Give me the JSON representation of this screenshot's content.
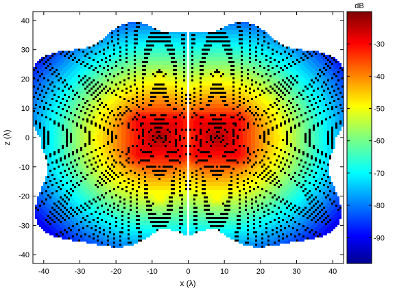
{
  "chart_data": {
    "type": "heatmap",
    "subtype": "filled-contour",
    "xlabel": "x (λ)",
    "ylabel": "z (λ)",
    "xlim": [
      -43,
      43
    ],
    "ylim": [
      -43,
      43
    ],
    "xticks": [
      -40,
      -30,
      -20,
      -10,
      0,
      10,
      20,
      30,
      40
    ],
    "yticks": [
      -40,
      -30,
      -20,
      -10,
      0,
      10,
      20,
      30,
      40
    ],
    "colorbar": {
      "unit_label": "dB",
      "range": [
        -98,
        -20
      ],
      "ticks": [
        -30,
        -40,
        -50,
        -60,
        -70,
        -80,
        -90
      ],
      "colormap": "jet"
    },
    "lobes": [
      {
        "center_x": -8,
        "center_z": 0,
        "peak_db": -21
      },
      {
        "center_x": 8,
        "center_z": 0,
        "peak_db": -21
      }
    ],
    "secondary_peaks": [
      {
        "x": -24,
        "z": 0,
        "peak_db": -46
      },
      {
        "x": 24,
        "z": 0,
        "peak_db": -46
      },
      {
        "x": -8,
        "z": 20,
        "peak_db": -48
      },
      {
        "x": 8,
        "z": 20,
        "peak_db": -48
      },
      {
        "x": -8,
        "z": -20,
        "peak_db": -48
      },
      {
        "x": 8,
        "z": -20,
        "peak_db": -48
      }
    ],
    "region_extent": {
      "x": [
        -42,
        42
      ],
      "z": [
        -37,
        37
      ]
    },
    "contour_levels_count": 40
  }
}
